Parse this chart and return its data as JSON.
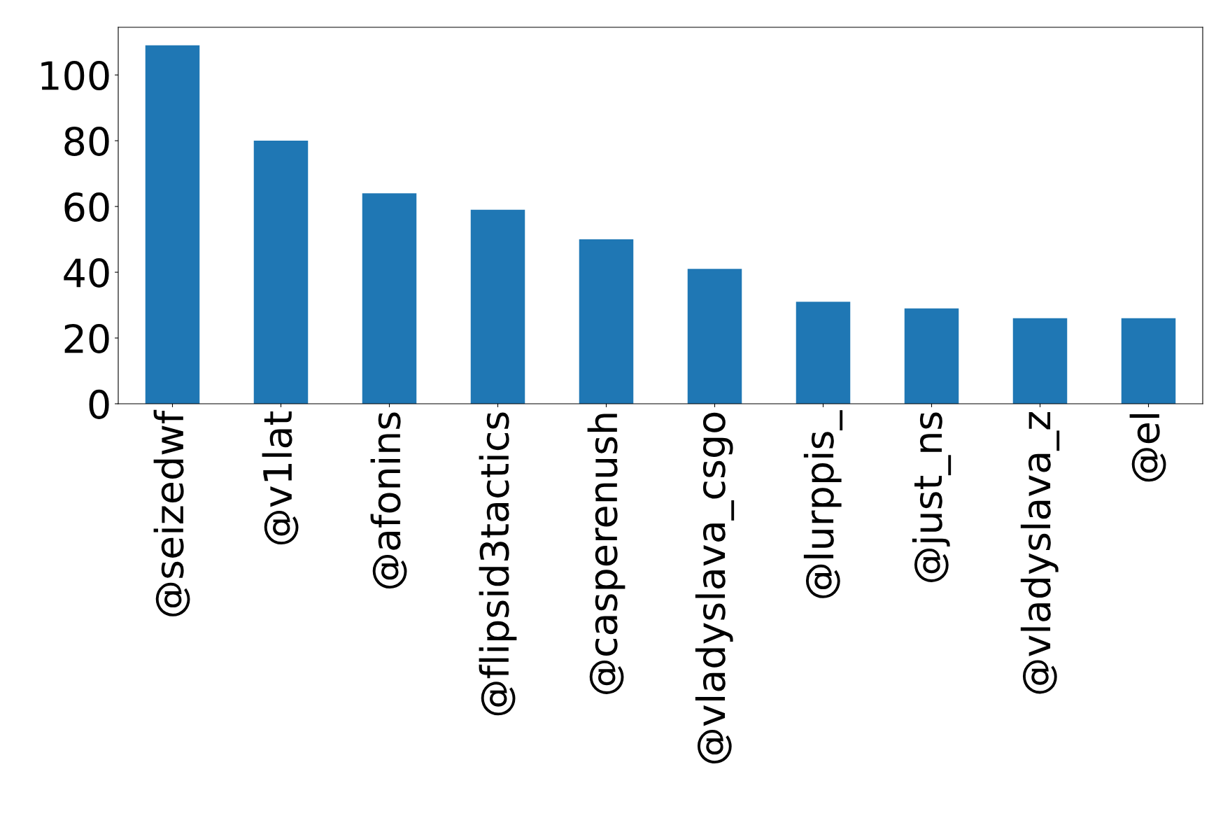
{
  "chart_data": {
    "type": "bar",
    "categories": [
      "@seizedwf",
      "@v1lat",
      "@afonins",
      "@flipsid3tactics",
      "@casperenush",
      "@vladyslava_csgo",
      "@lurppis_",
      "@just_ns",
      "@vladyslava_z",
      "@el"
    ],
    "values": [
      109,
      80,
      64,
      59,
      50,
      41,
      31,
      29,
      26,
      26
    ],
    "color": "#1f77b4",
    "ylim": [
      0,
      114.5
    ],
    "yticks": [
      0,
      20,
      40,
      60,
      80,
      100
    ],
    "grid": false,
    "legend": false
  }
}
